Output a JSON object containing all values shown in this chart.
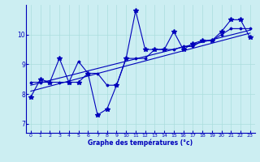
{
  "xlabel": "Graphe des températures (°c)",
  "background_color": "#cceef2",
  "line_color": "#0000bb",
  "grid_color": "#aadddd",
  "xlim": [
    -0.5,
    23.5
  ],
  "ylim": [
    6.7,
    11.0
  ],
  "yticks": [
    7,
    8,
    9,
    10
  ],
  "xticks": [
    0,
    1,
    2,
    3,
    4,
    5,
    6,
    7,
    8,
    9,
    10,
    11,
    12,
    13,
    14,
    15,
    16,
    17,
    18,
    19,
    20,
    21,
    22,
    23
  ],
  "main_temps": [
    7.9,
    8.5,
    8.4,
    9.2,
    8.4,
    8.4,
    8.7,
    7.3,
    7.5,
    8.3,
    9.2,
    10.8,
    9.5,
    9.5,
    9.5,
    10.1,
    9.5,
    9.7,
    9.8,
    9.8,
    10.1,
    10.5,
    10.5,
    9.9
  ],
  "line2_temps": [
    8.4,
    8.4,
    8.4,
    8.4,
    8.4,
    9.1,
    8.7,
    8.7,
    8.3,
    8.3,
    9.2,
    9.2,
    9.2,
    9.5,
    9.5,
    9.5,
    9.6,
    9.6,
    9.8,
    9.8,
    10.0,
    10.2,
    10.2,
    10.2
  ],
  "trend1_x": [
    0,
    23
  ],
  "trend1_y": [
    8.3,
    10.15
  ],
  "trend2_x": [
    0,
    23
  ],
  "trend2_y": [
    8.1,
    10.05
  ]
}
